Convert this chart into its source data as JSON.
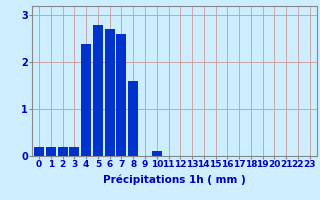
{
  "categories": [
    0,
    1,
    2,
    3,
    4,
    5,
    6,
    7,
    8,
    9,
    10,
    11,
    12,
    13,
    14,
    15,
    16,
    17,
    18,
    19,
    20,
    21,
    22,
    23
  ],
  "values": [
    0.2,
    0.2,
    0.2,
    0.2,
    2.4,
    2.8,
    2.7,
    2.6,
    1.6,
    0.0,
    0.1,
    0.0,
    0.0,
    0.0,
    0.0,
    0.0,
    0.0,
    0.0,
    0.0,
    0.0,
    0.0,
    0.0,
    0.0,
    0.0
  ],
  "bar_color": "#0033cc",
  "background_color": "#cceeff",
  "grid_color": "#cc9999",
  "xlabel": "Précipitations 1h ( mm )",
  "ylim": [
    0,
    3.2
  ],
  "yticks": [
    0,
    1,
    2,
    3
  ],
  "xlabel_fontsize": 7.5,
  "tick_fontsize": 6.5,
  "tick_color": "#0000bb",
  "axis_color": "#888888",
  "bar_width": 0.85
}
